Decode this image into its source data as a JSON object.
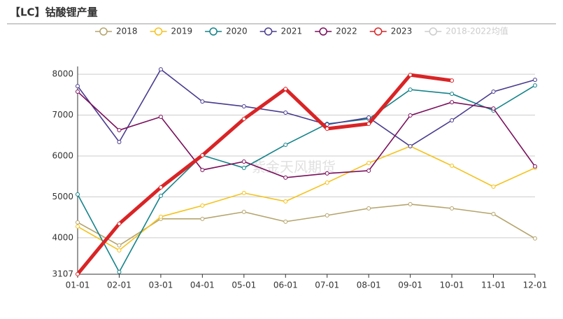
{
  "chart_data": {
    "type": "line",
    "title": "【LC】钴酸锂产量",
    "watermark": "紫金天风期货",
    "categories": [
      "01-01",
      "02-01",
      "03-01",
      "04-01",
      "05-01",
      "06-01",
      "07-01",
      "08-01",
      "09-01",
      "10-01",
      "11-01",
      "12-01"
    ],
    "ylim": [
      3107,
      8190
    ],
    "yticks": [
      3107,
      4000,
      5000,
      6000,
      7000,
      8000
    ],
    "grid": true,
    "series": [
      {
        "name": "2018",
        "color": "#b5a46d",
        "values": [
          4376,
          3812,
          4462,
          4462,
          4632,
          4393,
          4547,
          4718,
          4820,
          4718,
          4581,
          3983
        ]
      },
      {
        "name": "2019",
        "color": "#f5c21b",
        "values": [
          4274,
          3692,
          4513,
          4786,
          5094,
          4889,
          5350,
          5829,
          6239,
          5761,
          5248,
          5709
        ]
      },
      {
        "name": "2020",
        "color": "#14838a",
        "values": [
          5060,
          3162,
          5026,
          6017,
          5709,
          6274,
          6786,
          6906,
          7624,
          7521,
          7111,
          7726
        ]
      },
      {
        "name": "2021",
        "color": "#4a3b8f",
        "values": [
          7709,
          6342,
          8120,
          7333,
          7214,
          7060,
          6769,
          6940,
          6239,
          6872,
          7573,
          7863
        ]
      },
      {
        "name": "2022",
        "color": "#7a0f5c",
        "values": [
          7573,
          6632,
          6957,
          5658,
          5863,
          5470,
          5573,
          5641,
          6991,
          7316,
          7162,
          5744
        ]
      },
      {
        "name": "2023",
        "color": "#d92426",
        "values": [
          3110,
          4342,
          5231,
          6017,
          6906,
          7641,
          6667,
          6786,
          7983,
          7846,
          null,
          null
        ]
      },
      {
        "name": "2018-2022均值",
        "color": "#cccccc",
        "values": [
          null,
          null,
          null,
          null,
          null,
          null,
          null,
          null,
          null,
          null,
          null,
          null
        ]
      }
    ]
  }
}
